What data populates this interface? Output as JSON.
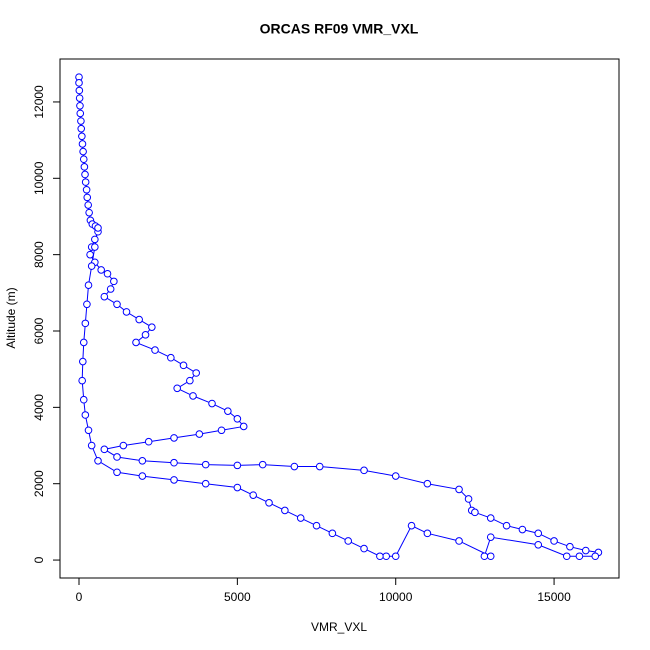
{
  "chart_data": {
    "type": "line",
    "marker": "circle",
    "title": "ORCAS RF09 VMR_VXL",
    "xlabel": "VMR_VXL",
    "ylabel": "Altitude (m)",
    "x": [
      0,
      0,
      10,
      20,
      30,
      40,
      60,
      70,
      90,
      110,
      130,
      150,
      170,
      190,
      210,
      240,
      260,
      290,
      320,
      360,
      420,
      520,
      600,
      500,
      400,
      350,
      500,
      700,
      900,
      1100,
      1000,
      800,
      1200,
      1500,
      1900,
      2300,
      2100,
      1800,
      2400,
      2900,
      3300,
      3700,
      3500,
      3100,
      3600,
      4200,
      4700,
      5000,
      5200,
      4500,
      3800,
      3000,
      2200,
      1400,
      800,
      1200,
      2000,
      3000,
      4000,
      5000,
      5800,
      6800,
      7600,
      9000,
      10000,
      11000,
      12000,
      12300,
      12400,
      12500,
      13000,
      13500,
      14000,
      14500,
      15000,
      15500,
      16000,
      16400,
      16300,
      15800,
      15400,
      14500,
      13000,
      12800,
      13000,
      12000,
      11000,
      10500,
      10000,
      9700,
      9500,
      9000,
      8500,
      8000,
      7500,
      7000,
      6500,
      6000,
      5500,
      5000,
      4000,
      3000,
      2000,
      1200,
      600,
      400,
      300,
      200,
      150,
      100,
      120,
      150,
      200,
      250,
      300,
      400,
      500,
      600
    ],
    "series": [
      {
        "color": "#0000ff",
        "values": [
          12650,
          12500,
          12300,
          12100,
          11900,
          11700,
          11500,
          11300,
          11100,
          10900,
          10700,
          10500,
          10300,
          10100,
          9900,
          9700,
          9500,
          9300,
          9100,
          8900,
          8800,
          8750,
          8600,
          8400,
          8200,
          8000,
          7800,
          7600,
          7500,
          7300,
          7100,
          6900,
          6700,
          6500,
          6300,
          6100,
          5900,
          5700,
          5500,
          5300,
          5100,
          4900,
          4700,
          4500,
          4300,
          4100,
          3900,
          3700,
          3500,
          3400,
          3300,
          3200,
          3100,
          3000,
          2900,
          2700,
          2600,
          2550,
          2500,
          2480,
          2500,
          2450,
          2450,
          2350,
          2200,
          2000,
          1850,
          1600,
          1300,
          1250,
          1100,
          900,
          800,
          700,
          500,
          350,
          250,
          200,
          100,
          100,
          100,
          400,
          600,
          100,
          100,
          500,
          700,
          900,
          100,
          100,
          100,
          300,
          500,
          700,
          900,
          1100,
          1300,
          1500,
          1700,
          1900,
          2000,
          2100,
          2200,
          2300,
          2600,
          3000,
          3400,
          3800,
          4200,
          4700,
          5200,
          5700,
          6200,
          6700,
          7200,
          7700,
          8200,
          8700
        ]
      }
    ],
    "xlim": [
      -600,
      17050
    ],
    "ylim": [
      -470,
      13125
    ],
    "xticks": [
      0,
      5000,
      10000,
      15000
    ],
    "yticks": [
      0,
      2000,
      4000,
      6000,
      8000,
      10000,
      12000
    ]
  }
}
